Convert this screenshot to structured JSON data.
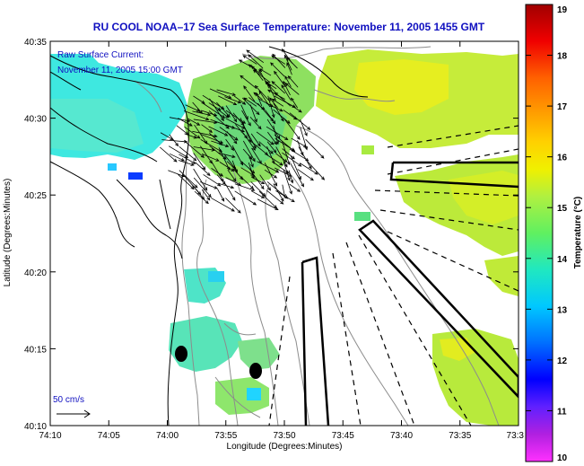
{
  "title": "RU COOL  NOAA–17  Sea Surface Temperature:  November 11, 2005 1455 GMT",
  "current_label": "Raw Surface Current:",
  "current_time": "November 11, 2005 15:00 GMT",
  "scale_label": "50 cm/s",
  "x_axis_label": "Longitude (Degrees:Minutes)",
  "y_axis_label": "Latitude (Degrees:Minutes)",
  "x_ticks": [
    "74:10",
    "74:05",
    "74:00",
    "73:55",
    "73:50",
    "73:45",
    "73:40",
    "73:35",
    "73:3"
  ],
  "y_ticks": [
    "40:35",
    "40:30",
    "40:25",
    "40:20",
    "40:15",
    "40:10"
  ],
  "colorbar": {
    "label": "Temperature (°C)",
    "ticks": [
      "19",
      "18",
      "17",
      "16",
      "15",
      "14",
      "13",
      "12",
      "11",
      "10"
    ],
    "min": 10,
    "max": 19
  },
  "colors": {
    "title": "#1010c0",
    "coastline": "#000000",
    "bathymetry": "#8c8c8c"
  }
}
